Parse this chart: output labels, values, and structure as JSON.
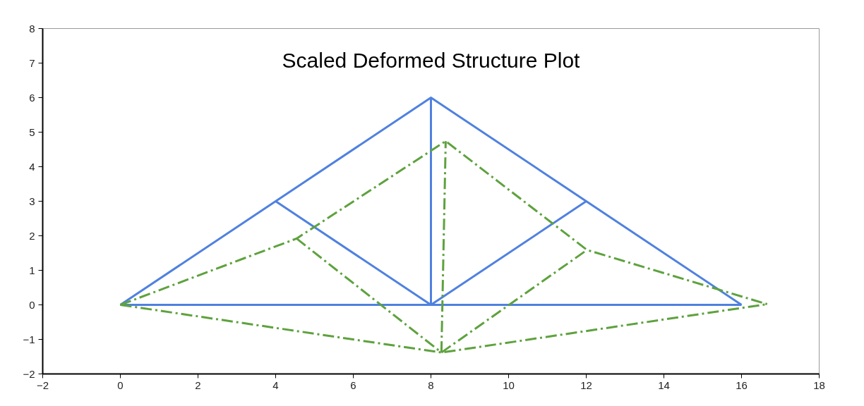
{
  "chart_data": {
    "type": "line",
    "title": "Scaled Deformed Structure Plot",
    "series": [
      {
        "color": "#4f81e0",
        "line_style": "solid",
        "x": [
          0,
          4,
          8,
          12,
          16
        ],
        "values": [
          0,
          3,
          6,
          3,
          0
        ]
      },
      {
        "color": "#4f81e0",
        "line_style": "solid",
        "x": [
          0,
          16
        ],
        "values": [
          0,
          0
        ]
      },
      {
        "color": "#4f81e0",
        "line_style": "solid",
        "x": [
          4,
          8,
          8
        ],
        "values": [
          3,
          0,
          6
        ]
      },
      {
        "color": "#4f81e0",
        "line_style": "solid",
        "x": [
          8,
          12
        ],
        "values": [
          0,
          3
        ]
      },
      {
        "color": "#5ea23e",
        "line_style": "dashdot",
        "x": [
          0,
          4.54,
          8.38,
          12.02,
          16.66
        ],
        "values": [
          0,
          1.92,
          4.74,
          1.59,
          0.02
        ]
      },
      {
        "color": "#5ea23e",
        "line_style": "dashdot",
        "x": [
          0,
          8.27,
          16.66
        ],
        "values": [
          0,
          -1.38,
          0.02
        ]
      },
      {
        "color": "#5ea23e",
        "line_style": "dashdot",
        "x": [
          4.54,
          8.27
        ],
        "values": [
          1.92,
          -1.38
        ]
      },
      {
        "color": "#5ea23e",
        "line_style": "dashdot",
        "x": [
          8.27,
          8.38
        ],
        "values": [
          -1.38,
          4.74
        ]
      },
      {
        "color": "#5ea23e",
        "line_style": "dashdot",
        "x": [
          8.27,
          12.02
        ],
        "values": [
          -1.38,
          1.59
        ]
      }
    ],
    "xlim": [
      -2,
      18
    ],
    "xticks": [
      -2,
      0,
      2,
      4,
      6,
      8,
      10,
      12,
      14,
      16,
      18
    ],
    "ylim": [
      -2,
      8
    ],
    "yticks": [
      -2,
      -1,
      0,
      1,
      2,
      3,
      4,
      5,
      6,
      7,
      8
    ],
    "grid": false,
    "marker": "none"
  }
}
